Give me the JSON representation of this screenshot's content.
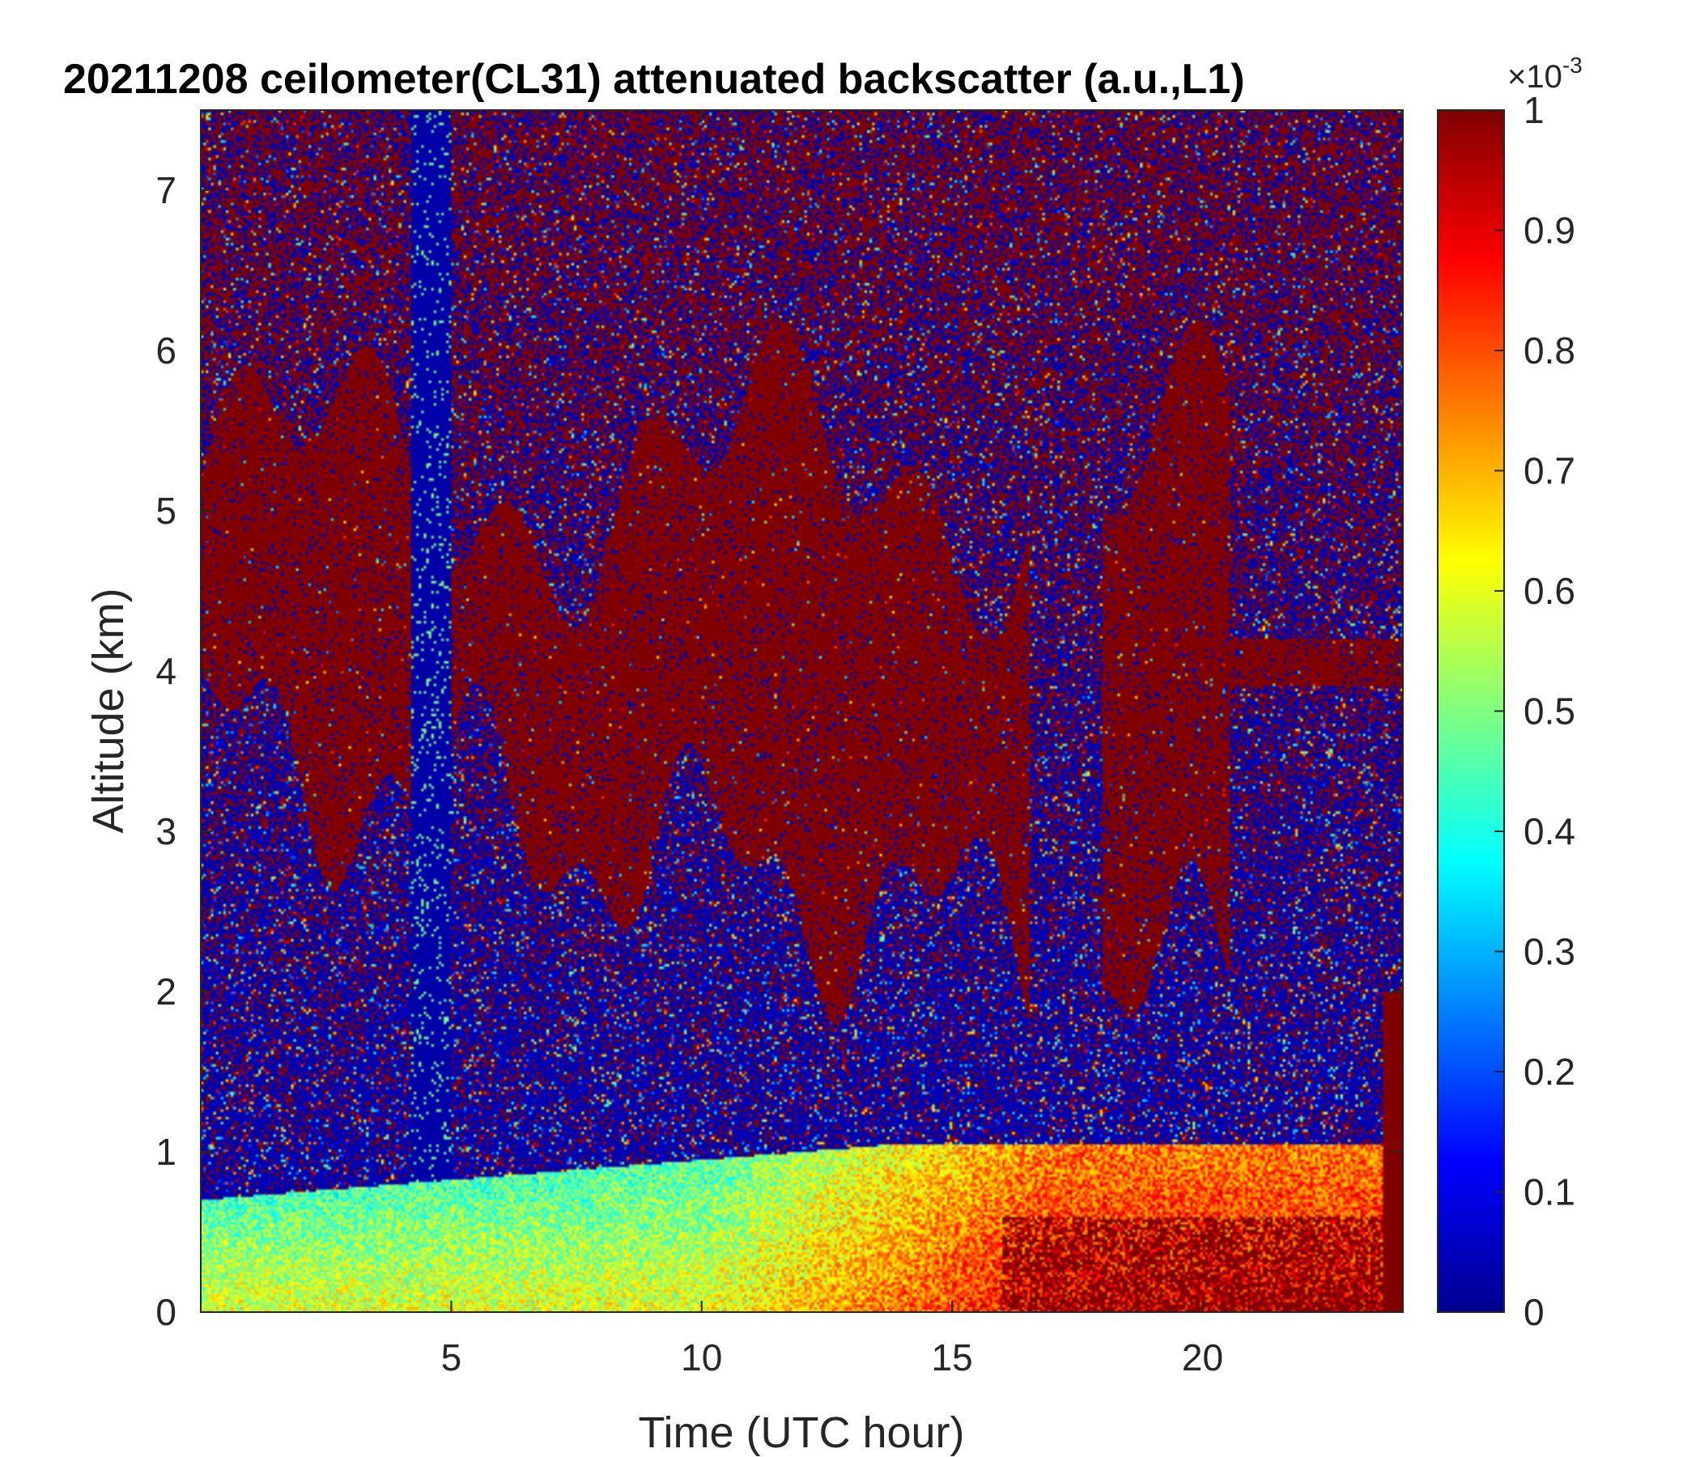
{
  "chart_data": {
    "type": "heatmap",
    "title": "20211208 ceilometer(CL31) attenuated backscatter (a.u.,L1)",
    "xlabel": "Time (UTC hour)",
    "ylabel": "Altitude (km)",
    "xlim": [
      0,
      24
    ],
    "ylim": [
      0,
      7.5
    ],
    "x_ticks": [
      "5",
      "10",
      "15",
      "20"
    ],
    "y_ticks": [
      "0",
      "1",
      "2",
      "3",
      "4",
      "5",
      "6",
      "7"
    ],
    "colorbar": {
      "colormap": "jet",
      "range": [
        0,
        1
      ],
      "exponent_base": "×10",
      "exponent_power": "-3",
      "ticks": [
        "0",
        "0.1",
        "0.2",
        "0.3",
        "0.4",
        "0.5",
        "0.6",
        "0.7",
        "0.8",
        "0.9",
        "1"
      ]
    },
    "features": {
      "boundary_layer_top_km": 1.0,
      "elevated_layer_heights_km": [
        2.5,
        5.5
      ],
      "high_backscatter_near_surface_hours": [
        15,
        24
      ]
    }
  }
}
